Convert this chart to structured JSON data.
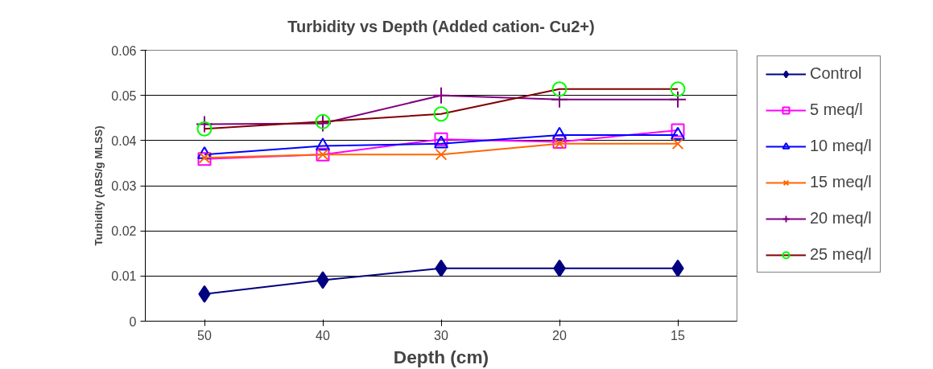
{
  "chart_data": {
    "type": "line",
    "title": "Turbidity vs Depth (Added cation- Cu2+)",
    "xlabel": "Depth (cm)",
    "ylabel": "Turbidity (ABS/g MLSS)",
    "categories": [
      "50",
      "40",
      "30",
      "20",
      "15"
    ],
    "ylim": [
      0,
      0.06
    ],
    "yticks": [
      0,
      0.01,
      0.02,
      0.03,
      0.04,
      0.05,
      0.06
    ],
    "grid": "y",
    "legend": "right",
    "series": [
      {
        "name": "Control",
        "color": "#000080",
        "marker": "diamond",
        "values": [
          0.006,
          0.0091,
          0.0117,
          0.0117,
          0.0117
        ]
      },
      {
        "name": "5 meq/l",
        "color": "#ff00ff",
        "marker": "square",
        "values": [
          0.0359,
          0.0369,
          0.0403,
          0.0397,
          0.0423
        ]
      },
      {
        "name": "10 meq/l",
        "color": "#0000ff",
        "marker": "triangle",
        "values": [
          0.0369,
          0.0388,
          0.0393,
          0.0412,
          0.0412
        ]
      },
      {
        "name": "15 meq/l",
        "color": "#ff6600",
        "marker": "x",
        "values": [
          0.0362,
          0.0369,
          0.0369,
          0.0393,
          0.0393
        ]
      },
      {
        "name": "20 meq/l",
        "color": "#800080",
        "marker": "cross",
        "values": [
          0.0436,
          0.0438,
          0.05,
          0.0491,
          0.0491
        ]
      },
      {
        "name": "25 meq/l",
        "color": "#800000",
        "marker": "circle",
        "colors": [
          "#00ff00",
          "#00ff00",
          "#00ff00",
          "#00ff00",
          "#00ff00"
        ],
        "values": [
          0.0426,
          0.0442,
          0.0459,
          0.0514,
          0.0514
        ]
      }
    ]
  }
}
